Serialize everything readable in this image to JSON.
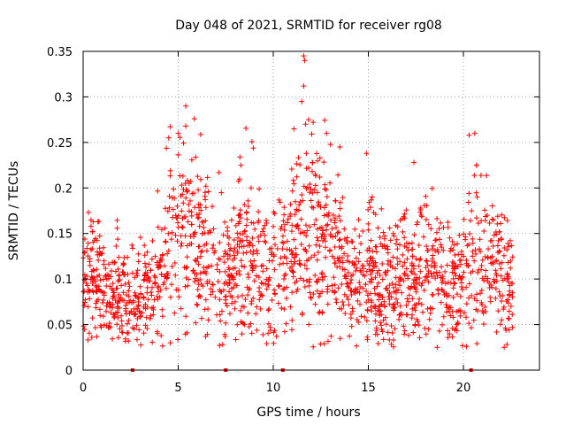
{
  "chart_data": {
    "type": "scatter",
    "title": "Day 048 of 2021, SRMTID for receiver rg08",
    "xlabel": "GPS time / hours",
    "ylabel": "SRMTID / TECUs",
    "xlim": [
      0,
      24
    ],
    "ylim": [
      0,
      0.35
    ],
    "grid": true,
    "marker": "+",
    "color": "#ff0000",
    "x_ticks": [
      0,
      5,
      10,
      15,
      20
    ],
    "x_tick_labels": [
      "0",
      "5",
      "10",
      "15",
      "20"
    ],
    "y_ticks": [
      0,
      0.05,
      0.1,
      0.15,
      0.2,
      0.25,
      0.3,
      0.35
    ],
    "y_tick_labels": [
      "0",
      "0.05",
      "0.1",
      "0.15",
      "0.2",
      "0.25",
      "0.3",
      "0.35"
    ],
    "baseline_markers_x": [
      2.6,
      7.5,
      10.5,
      20.4
    ],
    "envelope": {
      "hours": [
        0,
        0.5,
        1,
        1.5,
        2,
        2.5,
        3,
        3.5,
        4,
        4.5,
        5,
        5.5,
        6,
        6.5,
        7,
        7.5,
        8,
        8.5,
        9,
        9.5,
        10,
        10.5,
        11,
        11.5,
        12,
        12.5,
        13,
        13.5,
        14,
        14.5,
        15,
        15.5,
        16,
        16.5,
        17,
        17.5,
        18,
        18.5,
        19,
        19.5,
        20,
        20.5,
        21,
        21.5,
        22,
        22.5
      ],
      "center": [
        0.1,
        0.11,
        0.09,
        0.09,
        0.08,
        0.07,
        0.08,
        0.09,
        0.1,
        0.14,
        0.15,
        0.15,
        0.15,
        0.13,
        0.1,
        0.1,
        0.12,
        0.13,
        0.12,
        0.11,
        0.09,
        0.11,
        0.14,
        0.15,
        0.16,
        0.14,
        0.15,
        0.12,
        0.09,
        0.1,
        0.1,
        0.1,
        0.09,
        0.1,
        0.11,
        0.1,
        0.13,
        0.11,
        0.09,
        0.09,
        0.1,
        0.12,
        0.13,
        0.12,
        0.11,
        0.09
      ],
      "spread": [
        0.03,
        0.04,
        0.03,
        0.03,
        0.03,
        0.03,
        0.03,
        0.03,
        0.04,
        0.05,
        0.06,
        0.06,
        0.05,
        0.05,
        0.04,
        0.04,
        0.05,
        0.05,
        0.05,
        0.04,
        0.04,
        0.04,
        0.05,
        0.06,
        0.07,
        0.05,
        0.05,
        0.05,
        0.03,
        0.04,
        0.04,
        0.04,
        0.03,
        0.04,
        0.04,
        0.04,
        0.05,
        0.04,
        0.03,
        0.03,
        0.04,
        0.05,
        0.05,
        0.04,
        0.04,
        0.03
      ]
    },
    "peak_points": [
      {
        "x": 11.6,
        "y": 0.345
      },
      {
        "x": 11.65,
        "y": 0.34
      },
      {
        "x": 11.6,
        "y": 0.312
      },
      {
        "x": 11.5,
        "y": 0.295
      },
      {
        "x": 11.7,
        "y": 0.27
      },
      {
        "x": 5.4,
        "y": 0.29
      },
      {
        "x": 5.4,
        "y": 0.268
      },
      {
        "x": 5.0,
        "y": 0.26
      },
      {
        "x": 4.5,
        "y": 0.255
      },
      {
        "x": 20.3,
        "y": 0.258
      },
      {
        "x": 20.6,
        "y": 0.26
      },
      {
        "x": 20.7,
        "y": 0.225
      },
      {
        "x": 13.5,
        "y": 0.245
      },
      {
        "x": 12.8,
        "y": 0.26
      },
      {
        "x": 8.3,
        "y": 0.225
      },
      {
        "x": 17.4,
        "y": 0.228
      },
      {
        "x": 14.9,
        "y": 0.238
      }
    ],
    "n_points": 1800,
    "time_span_hours": [
      0,
      22.6
    ]
  }
}
